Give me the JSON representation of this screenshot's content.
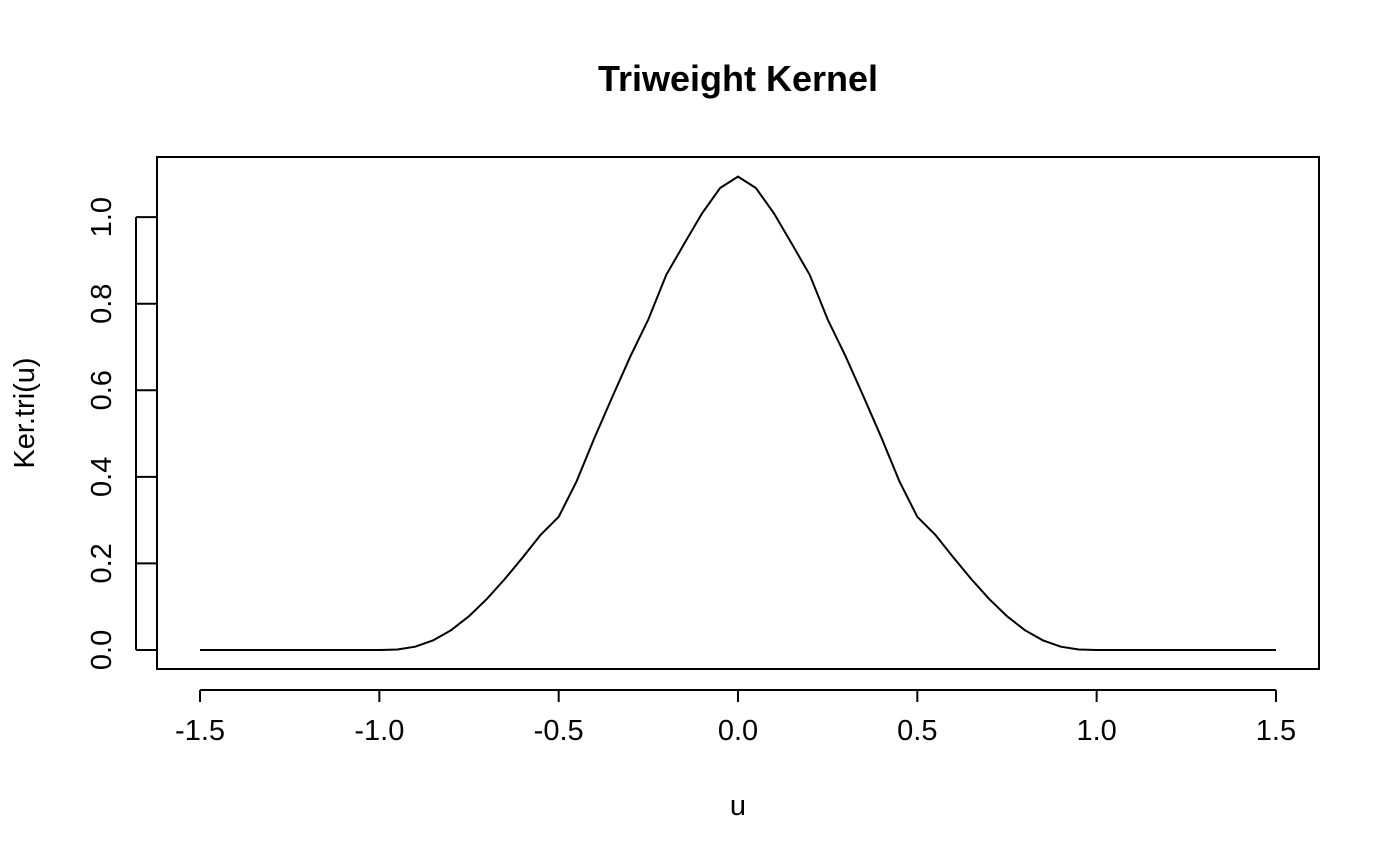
{
  "chart_data": {
    "type": "line",
    "title": "Triweight Kernel",
    "xlabel": "u",
    "ylabel": "Ker.tri(u)",
    "xlim": [
      -1.62,
      1.62
    ],
    "ylim": [
      -0.044,
      1.139
    ],
    "xticks": [
      -1.5,
      -1.0,
      -0.5,
      0.0,
      0.5,
      1.0,
      1.5
    ],
    "xtick_labels": [
      "-1.5",
      "-1.0",
      "-0.5",
      "0.0",
      "0.5",
      "1.0",
      "1.5"
    ],
    "yticks": [
      0.0,
      0.2,
      0.4,
      0.6,
      0.8,
      1.0
    ],
    "ytick_labels": [
      "0.0",
      "0.2",
      "0.4",
      "0.6",
      "0.8",
      "1.0"
    ],
    "grid": false,
    "line_color": "#000000",
    "series": [
      {
        "x": [
          -1.5,
          -1.4,
          -1.3,
          -1.2,
          -1.1,
          -1.0,
          -0.95,
          -0.9,
          -0.85,
          -0.8,
          -0.75,
          -0.7,
          -0.65,
          -0.6,
          -0.55,
          -0.5,
          -0.45,
          -0.4,
          -0.35,
          -0.3,
          -0.25,
          -0.2,
          -0.15,
          -0.1,
          -0.05,
          0.0,
          0.05,
          0.1,
          0.15,
          0.2,
          0.25,
          0.3,
          0.35,
          0.4,
          0.45,
          0.5,
          0.55,
          0.6,
          0.65,
          0.7,
          0.75,
          0.8,
          0.85,
          0.9,
          0.95,
          1.0,
          1.1,
          1.2,
          1.3,
          1.4,
          1.5
        ],
        "y": [
          0,
          0,
          0,
          0,
          0,
          0,
          0.0011,
          0.0075,
          0.0222,
          0.0457,
          0.0781,
          0.1182,
          0.1642,
          0.2141,
          0.266,
          0.3076,
          0.3898,
          0.4903,
          0.5856,
          0.6785,
          0.7635,
          0.8669,
          0.9385,
          1.009,
          1.0674,
          1.0938,
          1.0674,
          1.009,
          0.9385,
          0.8669,
          0.7635,
          0.6785,
          0.5856,
          0.4903,
          0.3898,
          0.3076,
          0.266,
          0.2141,
          0.1642,
          0.1182,
          0.0781,
          0.0457,
          0.0222,
          0.0075,
          0.0011,
          0,
          0,
          0,
          0,
          0,
          0
        ]
      }
    ]
  }
}
